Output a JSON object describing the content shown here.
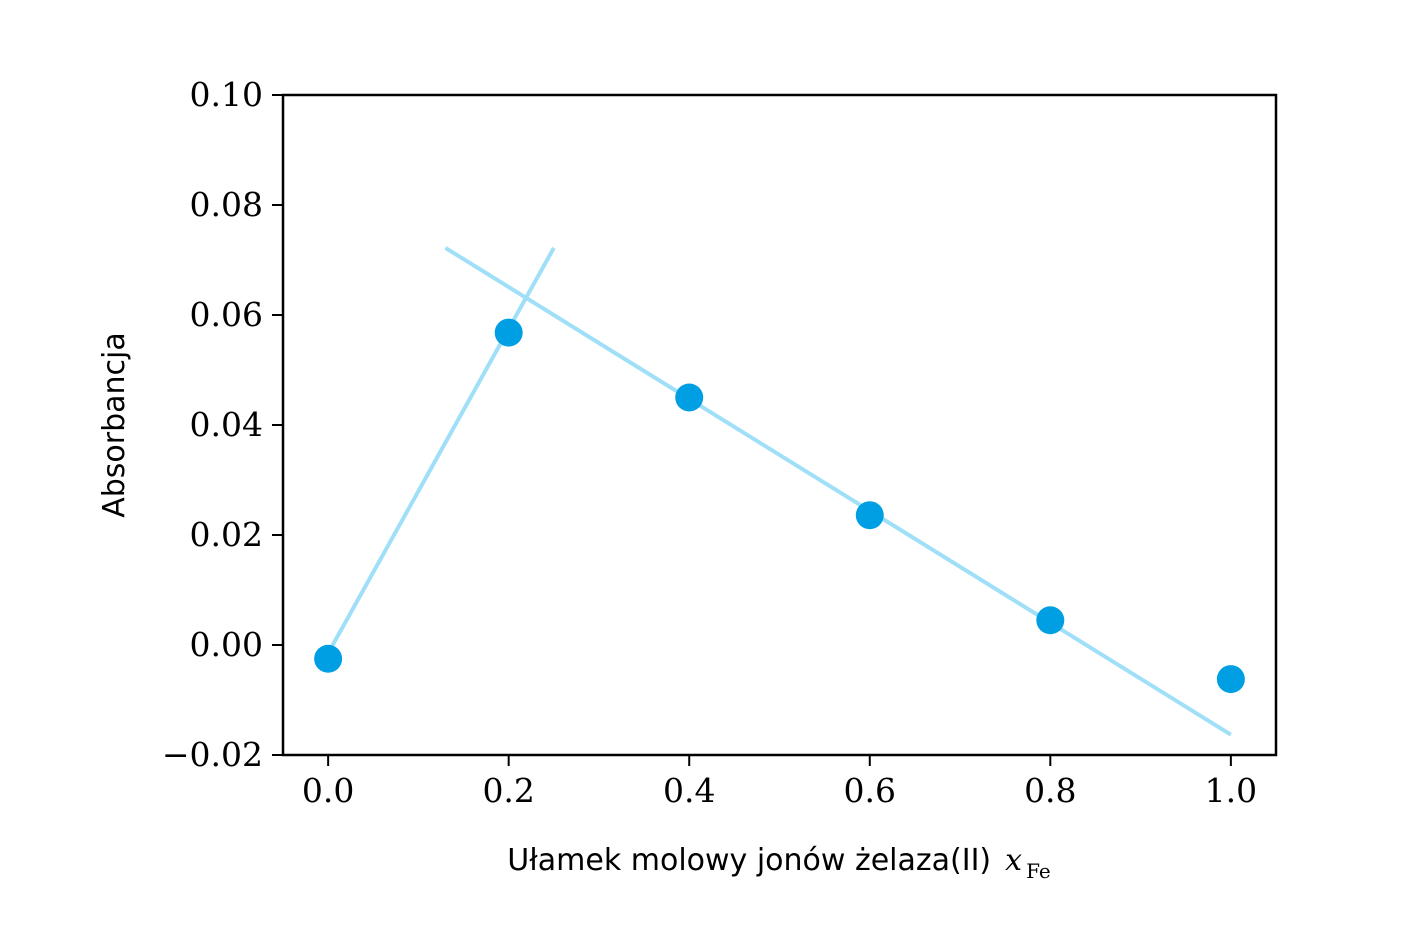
{
  "chart_data": {
    "type": "scatter",
    "title": "",
    "xlabel": "Ułamek molowy jonów żelaza(II)",
    "xlabel_math": "x",
    "xlabel_sub": "Fe",
    "ylabel": "Absorbancja",
    "xlim": [
      -0.05,
      1.05
    ],
    "ylim": [
      -0.02,
      0.1
    ],
    "grid": false,
    "x_ticks": [
      0.0,
      0.2,
      0.4,
      0.6,
      0.8,
      1.0
    ],
    "x_tick_labels": [
      "0.0",
      "0.2",
      "0.4",
      "0.6",
      "0.8",
      "1.0"
    ],
    "y_ticks": [
      -0.02,
      0.0,
      0.02,
      0.04,
      0.06,
      0.08,
      0.1
    ],
    "y_tick_labels": [
      "−0.02",
      "0.00",
      "0.02",
      "0.04",
      "0.06",
      "0.08",
      "0.10"
    ],
    "series": [
      {
        "type": "scatter",
        "color": "#009fe3",
        "x": [
          0.0,
          0.2,
          0.4,
          0.6,
          0.8,
          1.0
        ],
        "y": [
          -0.0025,
          0.0568,
          0.045,
          0.0236,
          0.0045,
          -0.0062
        ]
      }
    ],
    "fit_lines": [
      {
        "color": "#9fdff8",
        "x": [
          0.0,
          0.25
        ],
        "y": [
          -0.0015,
          0.0722
        ]
      },
      {
        "color": "#9fdff8",
        "x": [
          0.13,
          1.0
        ],
        "y": [
          0.0722,
          -0.0163
        ]
      }
    ]
  }
}
